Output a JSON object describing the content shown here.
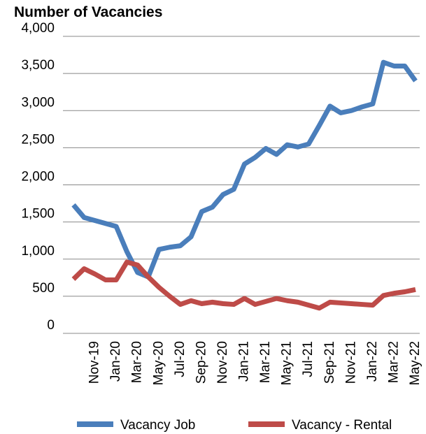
{
  "chart_data": {
    "type": "line",
    "title": "Number of Vacancies",
    "categories": [
      null,
      null,
      "Nov-19",
      null,
      "Jan-20",
      null,
      "Mar-20",
      null,
      "May-20",
      null,
      "Jul-20",
      null,
      "Sep-20",
      null,
      "Nov-20",
      null,
      "Jan-21",
      null,
      "Mar-21",
      null,
      "May-21",
      null,
      "Jul-21",
      null,
      "Sep-21",
      null,
      "Nov-21",
      null,
      "Jan-22",
      null,
      "Mar-22",
      null,
      "May-22"
    ],
    "series": [
      {
        "name": "Vacancy Job",
        "color": "#4a7ebb",
        "values": [
          1730,
          1560,
          1520,
          1480,
          1440,
          1100,
          820,
          760,
          1130,
          1160,
          1180,
          1300,
          1640,
          1700,
          1870,
          1940,
          2280,
          2370,
          2490,
          2410,
          2540,
          2510,
          2550,
          2800,
          3060,
          2970,
          3000,
          3050,
          3090,
          3650,
          3600,
          3600,
          3400
        ]
      },
      {
        "name": "Vacancy - Rental",
        "color": "#be4b48",
        "values": [
          730,
          870,
          800,
          720,
          720,
          960,
          920,
          760,
          620,
          500,
          390,
          440,
          400,
          420,
          400,
          390,
          470,
          390,
          430,
          470,
          440,
          420,
          380,
          340,
          420,
          410,
          400,
          390,
          380,
          510,
          540,
          560,
          590
        ]
      }
    ],
    "ylim": [
      0,
      4000
    ],
    "yticks": [
      0,
      500,
      {
        "value": 1000,
        "label": "1,000"
      },
      {
        "value": 1500,
        "label": "1,500"
      },
      {
        "value": 2000,
        "label": "2,000"
      },
      {
        "value": 2500,
        "label": "2,500"
      },
      {
        "value": 3000,
        "label": "3,000"
      },
      {
        "value": 3500,
        "label": "3,500"
      },
      {
        "value": 4000,
        "label": "4,000"
      }
    ],
    "grid": true,
    "legend": "bottom"
  }
}
